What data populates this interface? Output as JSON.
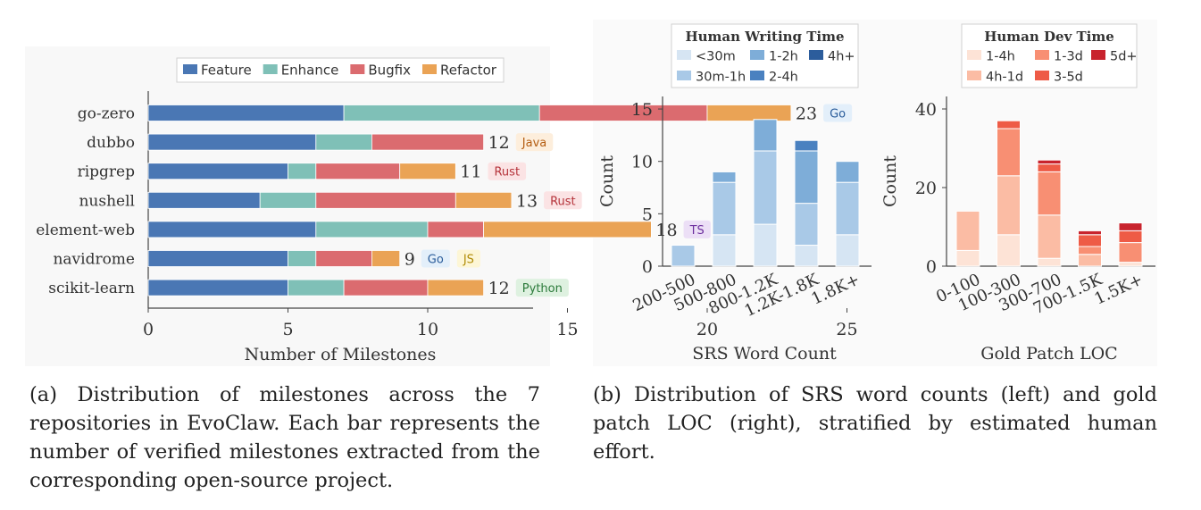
{
  "chart_data": [
    {
      "type": "bar",
      "orientation": "horizontal",
      "stacked": true,
      "categories": [
        "go-zero",
        "dubbo",
        "ripgrep",
        "nushell",
        "element-web",
        "navidrome",
        "scikit-learn"
      ],
      "series": [
        {
          "name": "Feature",
          "color": "#4a77b4",
          "values": [
            7,
            6,
            5,
            4,
            6,
            5,
            5
          ]
        },
        {
          "name": "Enhance",
          "color": "#7fc0b7",
          "values": [
            7,
            2,
            1,
            2,
            4,
            1,
            2
          ]
        },
        {
          "name": "Bugfix",
          "color": "#db6b6f",
          "values": [
            6,
            4,
            3,
            5,
            2,
            2,
            3
          ]
        },
        {
          "name": "Refactor",
          "color": "#eaa355",
          "values": [
            3,
            0,
            2,
            2,
            6,
            1,
            2
          ]
        }
      ],
      "totals": [
        "23",
        "12",
        "11",
        "13",
        "18",
        "9",
        "12"
      ],
      "languages": [
        [
          {
            "text": "Go",
            "bg": "#e3effa",
            "fg": "#2a5c9a"
          }
        ],
        [
          {
            "text": "Java",
            "bg": "#fdeedc",
            "fg": "#b45d12"
          }
        ],
        [
          {
            "text": "Rust",
            "bg": "#fbe3e4",
            "fg": "#b5343b"
          }
        ],
        [
          {
            "text": "Rust",
            "bg": "#fbe3e4",
            "fg": "#b5343b"
          }
        ],
        [
          {
            "text": "TS",
            "bg": "#ecdff6",
            "fg": "#6d2e9e"
          }
        ],
        [
          {
            "text": "Go",
            "bg": "#e3effa",
            "fg": "#2a5c9a"
          },
          {
            "text": "JS",
            "bg": "#fdf6d6",
            "fg": "#b08b06"
          }
        ],
        [
          {
            "text": "Python",
            "bg": "#def1e0",
            "fg": "#2b7a3a"
          }
        ]
      ],
      "xlabel": "Number of Milestones",
      "xlim": [
        0,
        28
      ],
      "xticks": [
        "0",
        "5",
        "10",
        "15",
        "20",
        "25"
      ],
      "legend_position": "top"
    },
    {
      "type": "bar",
      "stacked": true,
      "categories": [
        "200-500",
        "500-800",
        "800-1.2K",
        "1.2K-1.8K",
        "1.8K+"
      ],
      "series": [
        {
          "name": "<30m",
          "color": "#d6e5f3",
          "values": [
            0,
            3,
            4,
            2,
            3
          ]
        },
        {
          "name": "30m-1h",
          "color": "#a9c9e7",
          "values": [
            2,
            5,
            7,
            4,
            5
          ]
        },
        {
          "name": "1-2h",
          "color": "#7eadd8",
          "values": [
            0,
            1,
            3,
            5,
            2
          ]
        },
        {
          "name": "2-4h",
          "color": "#4a81c0",
          "values": [
            0,
            0,
            0,
            1,
            0
          ]
        },
        {
          "name": "4h+",
          "color": "#2c5d9c",
          "values": [
            0,
            0,
            0,
            0,
            0
          ]
        }
      ],
      "legend_title": "Human Writing Time",
      "xlabel": "SRS Word Count",
      "ylabel": "Count",
      "ylim": [
        0,
        16
      ],
      "yticks": [
        "0",
        "5",
        "10",
        "15"
      ]
    },
    {
      "type": "bar",
      "stacked": true,
      "categories": [
        "0-100",
        "100-300",
        "300-700",
        "700-1.5K",
        "1.5K+"
      ],
      "series": [
        {
          "name": "1-4h",
          "color": "#fde3d6",
          "values": [
            4,
            8,
            2,
            0,
            1
          ]
        },
        {
          "name": "4h-1d",
          "color": "#fbbca4",
          "values": [
            10,
            15,
            11,
            3,
            0
          ]
        },
        {
          "name": "1-3d",
          "color": "#f88f73",
          "values": [
            0,
            12,
            11,
            2,
            5
          ]
        },
        {
          "name": "3-5d",
          "color": "#ee5b46",
          "values": [
            0,
            2,
            2,
            3,
            3
          ]
        },
        {
          "name": "5d+",
          "color": "#c8232d",
          "values": [
            0,
            0,
            1,
            1,
            2
          ]
        }
      ],
      "legend_title": "Human Dev Time",
      "xlabel": "Gold Patch LOC",
      "ylabel": "Count",
      "ylim": [
        0,
        44
      ],
      "yticks": [
        "0",
        "20",
        "40"
      ]
    }
  ],
  "captions": {
    "a": "(a) Distribution of milestones across the 7 repositories in EvoClaw. Each bar represents the number of verified milestones extracted from the corresponding open-source project.",
    "b": "(b) Distribution of SRS word counts (left) and gold patch LOC (right), stratified by estimated human effort."
  }
}
